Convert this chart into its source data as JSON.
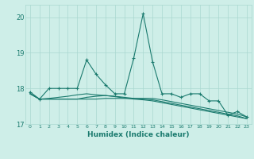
{
  "xlabel": "Humidex (Indice chaleur)",
  "x": [
    0,
    1,
    2,
    3,
    4,
    5,
    6,
    7,
    8,
    9,
    10,
    11,
    12,
    13,
    14,
    15,
    16,
    17,
    18,
    19,
    20,
    21,
    22,
    23
  ],
  "line1": [
    17.9,
    17.7,
    18.0,
    18.0,
    18.0,
    18.0,
    18.8,
    18.4,
    18.1,
    17.85,
    17.85,
    18.85,
    20.1,
    18.75,
    17.85,
    17.85,
    17.75,
    17.85,
    17.85,
    17.65,
    17.65,
    17.25,
    17.35,
    17.2
  ],
  "line2": [
    17.85,
    17.7,
    17.7,
    17.7,
    17.7,
    17.7,
    17.7,
    17.7,
    17.72,
    17.72,
    17.72,
    17.72,
    17.72,
    17.72,
    17.68,
    17.63,
    17.58,
    17.53,
    17.48,
    17.43,
    17.38,
    17.33,
    17.28,
    17.2
  ],
  "line3": [
    17.85,
    17.7,
    17.7,
    17.7,
    17.7,
    17.7,
    17.75,
    17.78,
    17.8,
    17.78,
    17.75,
    17.72,
    17.7,
    17.68,
    17.63,
    17.58,
    17.53,
    17.48,
    17.43,
    17.38,
    17.33,
    17.28,
    17.23,
    17.15
  ],
  "line4": [
    17.85,
    17.7,
    17.72,
    17.75,
    17.78,
    17.82,
    17.85,
    17.82,
    17.8,
    17.77,
    17.73,
    17.7,
    17.68,
    17.65,
    17.6,
    17.55,
    17.5,
    17.45,
    17.4,
    17.35,
    17.3,
    17.25,
    17.2,
    17.15
  ],
  "color": "#1a7a6e",
  "bg_color": "#ceeee8",
  "grid_color": "#aad8d0",
  "ylim": [
    17.0,
    20.35
  ],
  "yticks": [
    17,
    18,
    19,
    20
  ],
  "figwidth": 3.2,
  "figheight": 2.0,
  "dpi": 100
}
